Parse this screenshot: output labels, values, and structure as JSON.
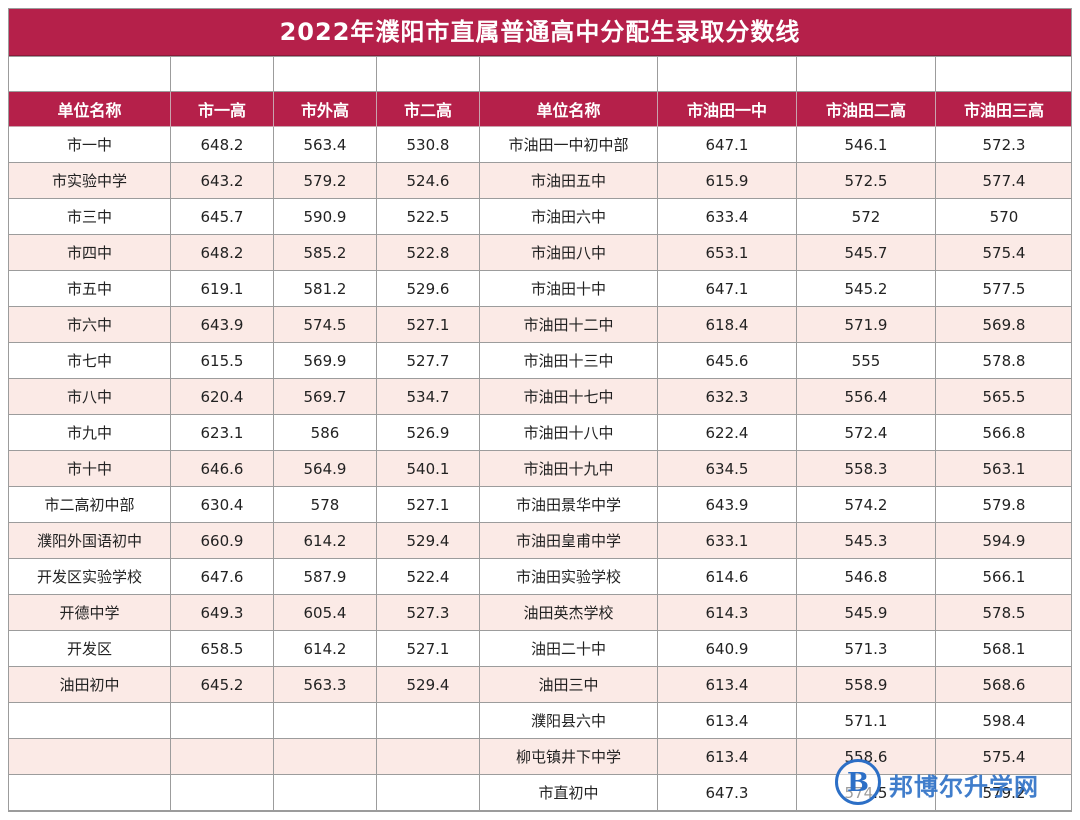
{
  "title": "2022年濮阳市直属普通高中分配生录取分数线",
  "headers": [
    "单位名称",
    "市一高",
    "市外高",
    "市二高",
    "单位名称",
    "市油田一中",
    "市油田二高",
    "市油田三高"
  ],
  "rows": [
    [
      "市一中",
      "648.2",
      "563.4",
      "530.8",
      "市油田一中初中部",
      "647.1",
      "546.1",
      "572.3"
    ],
    [
      "市实验中学",
      "643.2",
      "579.2",
      "524.6",
      "市油田五中",
      "615.9",
      "572.5",
      "577.4"
    ],
    [
      "市三中",
      "645.7",
      "590.9",
      "522.5",
      "市油田六中",
      "633.4",
      "572",
      "570"
    ],
    [
      "市四中",
      "648.2",
      "585.2",
      "522.8",
      "市油田八中",
      "653.1",
      "545.7",
      "575.4"
    ],
    [
      "市五中",
      "619.1",
      "581.2",
      "529.6",
      "市油田十中",
      "647.1",
      "545.2",
      "577.5"
    ],
    [
      "市六中",
      "643.9",
      "574.5",
      "527.1",
      "市油田十二中",
      "618.4",
      "571.9",
      "569.8"
    ],
    [
      "市七中",
      "615.5",
      "569.9",
      "527.7",
      "市油田十三中",
      "645.6",
      "555",
      "578.8"
    ],
    [
      "市八中",
      "620.4",
      "569.7",
      "534.7",
      "市油田十七中",
      "632.3",
      "556.4",
      "565.5"
    ],
    [
      "市九中",
      "623.1",
      "586",
      "526.9",
      "市油田十八中",
      "622.4",
      "572.4",
      "566.8"
    ],
    [
      "市十中",
      "646.6",
      "564.9",
      "540.1",
      "市油田十九中",
      "634.5",
      "558.3",
      "563.1"
    ],
    [
      "市二高初中部",
      "630.4",
      "578",
      "527.1",
      "市油田景华中学",
      "643.9",
      "574.2",
      "579.8"
    ],
    [
      "濮阳外国语初中",
      "660.9",
      "614.2",
      "529.4",
      "市油田皇甫中学",
      "633.1",
      "545.3",
      "594.9"
    ],
    [
      "开发区实验学校",
      "647.6",
      "587.9",
      "522.4",
      "市油田实验学校",
      "614.6",
      "546.8",
      "566.1"
    ],
    [
      "开德中学",
      "649.3",
      "605.4",
      "527.3",
      "油田英杰学校",
      "614.3",
      "545.9",
      "578.5"
    ],
    [
      "开发区",
      "658.5",
      "614.2",
      "527.1",
      "油田二十中",
      "640.9",
      "571.3",
      "568.1"
    ],
    [
      "油田初中",
      "645.2",
      "563.3",
      "529.4",
      "油田三中",
      "613.4",
      "558.9",
      "568.6"
    ],
    [
      "",
      "",
      "",
      "",
      "濮阳县六中",
      "613.4",
      "571.1",
      "598.4"
    ],
    [
      "",
      "",
      "",
      "",
      "柳屯镇井下中学",
      "613.4",
      "558.6",
      "575.4"
    ],
    [
      "",
      "",
      "",
      "",
      "市直初中",
      "647.3",
      "574.5",
      "579.2"
    ]
  ],
  "watermark": {
    "logo_letter": "B",
    "text": "邦博尔升学网",
    "color": "#2c6fc6"
  },
  "colors": {
    "header_bg": "#b5204a",
    "row_alt_bg": "#fbeae6"
  }
}
